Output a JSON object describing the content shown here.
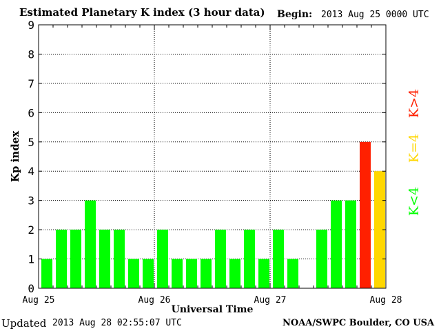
{
  "header": {
    "title": "Estimated Planetary K index (3 hour data)",
    "begin_label": "Begin:",
    "begin_value": "2013 Aug 25 0000 UTC"
  },
  "footer": {
    "updated_label": "Updated",
    "updated_value": "2013 Aug 28 02:55:07 UTC",
    "credit": "NOAA/SWPC Boulder, CO USA"
  },
  "legend": {
    "low": "K<4",
    "equal": "K=4",
    "high": "K>4"
  },
  "colors": {
    "low": "#00ff00",
    "equal": "#ffd700",
    "high": "#ff2000"
  },
  "chart_data": {
    "type": "bar",
    "title": "Estimated Planetary K index (3 hour data)",
    "xlabel": "Universal Time",
    "ylabel": "Kp index",
    "ylim": [
      0,
      9
    ],
    "yticks": [
      0,
      1,
      2,
      3,
      4,
      5,
      6,
      7,
      8,
      9
    ],
    "x_tick_labels": [
      "Aug 25",
      "Aug 26",
      "Aug 27",
      "Aug 28"
    ],
    "grid": "dotted vertical day lines, dotted horizontal lines at each Kp level",
    "bars_per_day": 8,
    "values": [
      1,
      2,
      2,
      3,
      2,
      2,
      1,
      1,
      2,
      1,
      1,
      1,
      2,
      1,
      2,
      1,
      2,
      1,
      0,
      2,
      3,
      3,
      5,
      4
    ]
  }
}
